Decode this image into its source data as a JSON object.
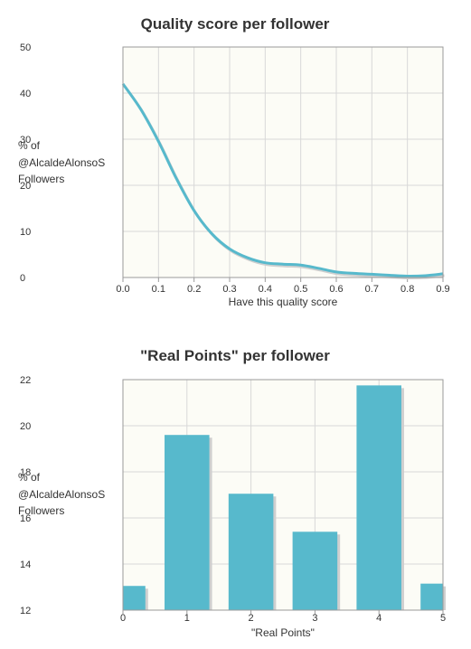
{
  "colors": {
    "plot_bg": "#fcfcf6",
    "grid": "#d8d8d8",
    "border": "#9a9a9a",
    "series": "#57b9cc",
    "shadow": "#cfcfcf"
  },
  "chart_data": [
    {
      "type": "line",
      "title": "Quality score per follower",
      "xlabel": "Have this quality score",
      "ylabel_lines": [
        "% of",
        "@AlcaldeAlonsoS",
        "Followers"
      ],
      "x_ticks": [
        "0.0",
        "0.1",
        "0.2",
        "0.3",
        "0.4",
        "0.5",
        "0.6",
        "0.7",
        "0.8",
        "0.9"
      ],
      "y_ticks": [
        "0",
        "10",
        "20",
        "30",
        "40",
        "50"
      ],
      "xlim": [
        0,
        0.9
      ],
      "ylim": [
        0,
        50
      ],
      "grid": true,
      "series": [
        {
          "x": [
            0.0,
            0.05,
            0.1,
            0.15,
            0.2,
            0.25,
            0.3,
            0.35,
            0.4,
            0.45,
            0.5,
            0.55,
            0.6,
            0.65,
            0.7,
            0.75,
            0.8,
            0.85,
            0.9
          ],
          "y": [
            42,
            36.5,
            29.5,
            21.5,
            14.5,
            9.5,
            6.2,
            4.3,
            3.2,
            2.9,
            2.7,
            2.0,
            1.2,
            0.9,
            0.7,
            0.5,
            0.3,
            0.4,
            0.8
          ]
        }
      ]
    },
    {
      "type": "bar",
      "title": "\"Real Points\" per follower",
      "xlabel": "\"Real Points\"",
      "ylabel_lines": [
        "% of",
        "@AlcaldeAlonsoS",
        "Followers"
      ],
      "categories": [
        "0",
        "1",
        "2",
        "3",
        "4",
        "5"
      ],
      "values": [
        13.05,
        19.6,
        17.05,
        15.4,
        21.75,
        13.15
      ],
      "y_ticks": [
        "12",
        "14",
        "16",
        "18",
        "20",
        "22"
      ],
      "ylim": [
        12,
        22
      ],
      "grid": true
    }
  ]
}
